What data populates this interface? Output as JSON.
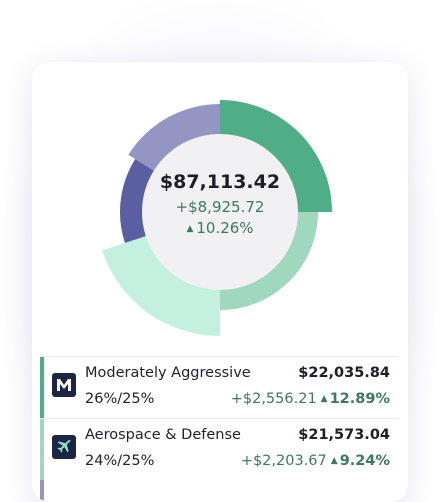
{
  "summary": {
    "total_value": "$87,113.42",
    "gain_amount": "+$8,925.72",
    "gain_percent": "10.26%",
    "gain_direction_icon": "triangle-up-icon"
  },
  "donut": {
    "segments": [
      {
        "color": "#4fae86"
      },
      {
        "color": "#9fd7bf"
      },
      {
        "color": "#c4f1df"
      },
      {
        "color": "#5a5fa1"
      },
      {
        "color": "#9396c3"
      }
    ]
  },
  "holdings": [
    {
      "name": "Moderately Aggressive",
      "allocation": "26%/25%",
      "value": "$22,035.84",
      "change_amount": "+$2,556.21",
      "change_percent": "12.89%",
      "accent_color": "#4fae86",
      "icon": "m-logo-icon"
    },
    {
      "name": "Aerospace & Defense",
      "allocation": "24%/25%",
      "value": "$21,573.04",
      "change_amount": "+$2,203.67",
      "change_percent": "9.24%",
      "accent_color": "#9fd7bf",
      "icon": "airplane-icon"
    }
  ],
  "partial_row_accent": "#9396c3"
}
